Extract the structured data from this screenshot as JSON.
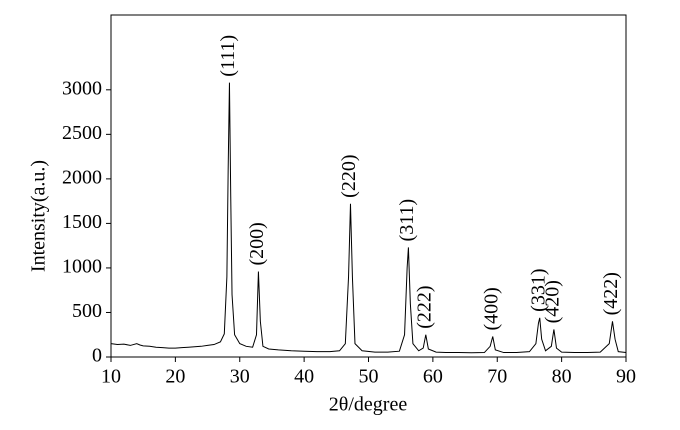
{
  "chart_data": {
    "type": "line",
    "xlabel": "2θ/degree",
    "ylabel": "Intensity(a.u.)",
    "xlim": [
      10,
      90
    ],
    "ylim": [
      0,
      3840
    ],
    "xticks": [
      10,
      20,
      30,
      40,
      50,
      60,
      70,
      80,
      90
    ],
    "yticks": [
      0,
      500,
      1000,
      1500,
      2000,
      2500,
      3000
    ],
    "x": [
      10,
      11,
      12,
      13,
      14,
      14.5,
      15,
      16,
      17,
      18,
      19,
      20,
      21,
      22,
      23,
      24,
      25,
      26,
      27,
      27.6,
      28.0,
      28.2,
      28.4,
      28.6,
      28.8,
      29.2,
      30,
      31,
      32,
      32.6,
      32.9,
      33.2,
      33.6,
      34.5,
      36,
      38,
      40,
      42,
      44,
      45.5,
      46.4,
      46.9,
      47.2,
      47.5,
      47.9,
      49,
      51,
      53,
      54.8,
      55.6,
      56.0,
      56.2,
      56.5,
      56.9,
      57.8,
      58.5,
      58.9,
      59.3,
      60.5,
      62,
      64,
      66,
      68,
      68.9,
      69.3,
      69.7,
      71,
      73,
      75,
      76,
      76.4,
      76.6,
      76.9,
      77.5,
      78.4,
      78.8,
      79.2,
      80,
      82,
      84,
      86,
      87.4,
      87.9,
      88.3,
      88.8,
      90
    ],
    "series": [
      {
        "color": "#000000",
        "values": [
          150,
          140,
          145,
          130,
          150,
          135,
          125,
          120,
          110,
          105,
          100,
          100,
          105,
          110,
          115,
          120,
          130,
          140,
          170,
          260,
          900,
          2100,
          3080,
          1800,
          700,
          250,
          150,
          120,
          110,
          250,
          960,
          400,
          120,
          90,
          80,
          70,
          65,
          60,
          60,
          70,
          150,
          900,
          1720,
          900,
          150,
          70,
          55,
          55,
          65,
          250,
          1000,
          1230,
          600,
          150,
          70,
          100,
          250,
          90,
          55,
          50,
          50,
          48,
          50,
          120,
          230,
          80,
          50,
          50,
          60,
          150,
          380,
          440,
          200,
          70,
          120,
          310,
          100,
          55,
          50,
          50,
          55,
          150,
          400,
          200,
          60,
          50
        ]
      }
    ],
    "annotations": [
      {
        "text": "(111)",
        "x": 28.4,
        "y": 3080
      },
      {
        "text": "(200)",
        "x": 32.9,
        "y": 960
      },
      {
        "text": "(220)",
        "x": 47.2,
        "y": 1720
      },
      {
        "text": "(311)",
        "x": 56.2,
        "y": 1230
      },
      {
        "text": "(222)",
        "x": 58.9,
        "y": 250
      },
      {
        "text": "(400)",
        "x": 69.3,
        "y": 230
      },
      {
        "text": "(331)",
        "x": 76.6,
        "y": 440
      },
      {
        "text": "(420)",
        "x": 78.8,
        "y": 310
      },
      {
        "text": "(422)",
        "x": 87.9,
        "y": 400
      }
    ]
  }
}
